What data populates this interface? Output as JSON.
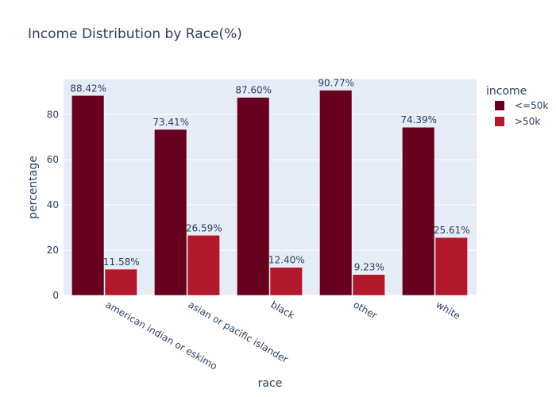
{
  "chart_data": {
    "type": "bar",
    "title": "Income Distribution by Race(%)",
    "xlabel": "race",
    "ylabel": "percentage",
    "categories": [
      "american indian or eskimo",
      "asian or pacific islander",
      "black",
      "other",
      "white"
    ],
    "series": [
      {
        "name": "<=50k",
        "color": "#67001f",
        "values": [
          88.42,
          73.41,
          87.6,
          90.77,
          74.39
        ],
        "labels": [
          "88.42%",
          "73.41%",
          "87.60%",
          "90.77%",
          "74.39%"
        ]
      },
      {
        "name": ">50k",
        "color": "#b2182b",
        "values": [
          11.58,
          26.59,
          12.4,
          9.23,
          25.61
        ],
        "labels": [
          "11.58%",
          "26.59%",
          "12.40%",
          "9.23%",
          "25.61%"
        ]
      }
    ],
    "ylim": [
      0,
      95.55
    ],
    "yticks": [
      0,
      20,
      40,
      60,
      80
    ],
    "legend": {
      "title": "income",
      "placement": "right"
    },
    "grid": true,
    "plot_background": "#e5ecf6",
    "text_color": "#2a3f5f"
  }
}
